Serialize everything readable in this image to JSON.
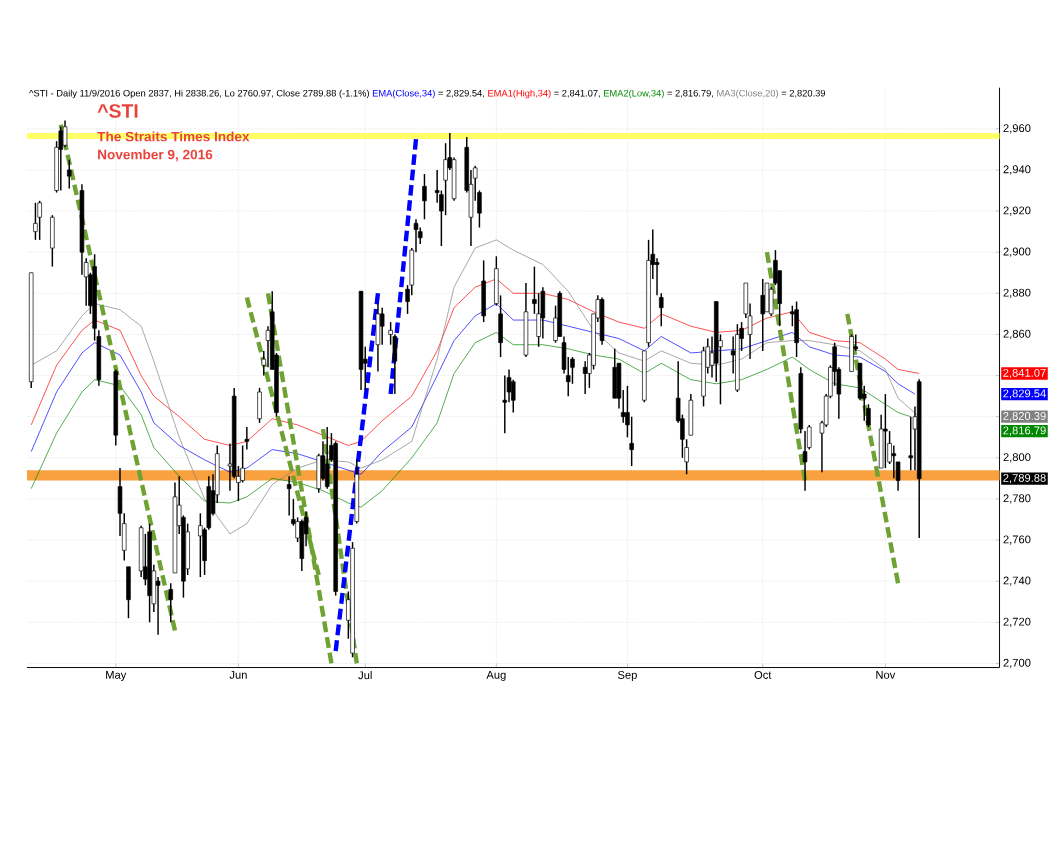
{
  "chart_data": {
    "type": "candlestick",
    "title": "^STI",
    "subtitle": "The Straits Times Index",
    "x": [
      "2016-04-13",
      "2016-04-14",
      "2016-04-15",
      "2016-04-18",
      "2016-04-19",
      "2016-04-20",
      "2016-04-21",
      "2016-04-22",
      "2016-04-25",
      "2016-04-26",
      "2016-04-27",
      "2016-04-28",
      "2016-04-29",
      "2016-05-03",
      "2016-05-04",
      "2016-05-05",
      "2016-05-06",
      "2016-05-09",
      "2016-05-10",
      "2016-05-11",
      "2016-05-12",
      "2016-05-13",
      "2016-05-16",
      "2016-05-17",
      "2016-05-18",
      "2016-05-19",
      "2016-05-20",
      "2016-05-23",
      "2016-05-24",
      "2016-05-25",
      "2016-05-26",
      "2016-05-27",
      "2016-05-30",
      "2016-05-31",
      "2016-06-01",
      "2016-06-02",
      "2016-06-03",
      "2016-06-06",
      "2016-06-07",
      "2016-06-08",
      "2016-06-09",
      "2016-06-10",
      "2016-06-13",
      "2016-06-14",
      "2016-06-15",
      "2016-06-16",
      "2016-06-17",
      "2016-06-20",
      "2016-06-21",
      "2016-06-22",
      "2016-06-23",
      "2016-06-24",
      "2016-06-27",
      "2016-06-28",
      "2016-06-29",
      "2016-06-30",
      "2016-07-01",
      "2016-07-04",
      "2016-07-05",
      "2016-07-07",
      "2016-07-08",
      "2016-07-11",
      "2016-07-12",
      "2016-07-13",
      "2016-07-14",
      "2016-07-15",
      "2016-07-18",
      "2016-07-19",
      "2016-07-20",
      "2016-07-21",
      "2016-07-22",
      "2016-07-25",
      "2016-07-26",
      "2016-07-27",
      "2016-07-28",
      "2016-07-29",
      "2016-08-01",
      "2016-08-02",
      "2016-08-03",
      "2016-08-04",
      "2016-08-05",
      "2016-08-08",
      "2016-08-10",
      "2016-08-11",
      "2016-08-12",
      "2016-08-15",
      "2016-08-16",
      "2016-08-17",
      "2016-08-18",
      "2016-08-19",
      "2016-08-22",
      "2016-08-23",
      "2016-08-24",
      "2016-08-25",
      "2016-08-26",
      "2016-08-29",
      "2016-08-30",
      "2016-08-31",
      "2016-09-01",
      "2016-09-02",
      "2016-09-05",
      "2016-09-06",
      "2016-09-07",
      "2016-09-08",
      "2016-09-09",
      "2016-09-13",
      "2016-09-14",
      "2016-09-15",
      "2016-09-16",
      "2016-09-19",
      "2016-09-20",
      "2016-09-21",
      "2016-09-22",
      "2016-09-23",
      "2016-09-26",
      "2016-09-27",
      "2016-09-28",
      "2016-09-29",
      "2016-09-30",
      "2016-10-03",
      "2016-10-04",
      "2016-10-05",
      "2016-10-06",
      "2016-10-07",
      "2016-10-10",
      "2016-10-11",
      "2016-10-12",
      "2016-10-13",
      "2016-10-14",
      "2016-10-17",
      "2016-10-18",
      "2016-10-19",
      "2016-10-20",
      "2016-10-21",
      "2016-10-24",
      "2016-10-25",
      "2016-10-26",
      "2016-10-27",
      "2016-10-28",
      "2016-10-31",
      "2016-11-01",
      "2016-11-02",
      "2016-11-03",
      "2016-11-04",
      "2016-11-07",
      "2016-11-08",
      "2016-11-09"
    ],
    "ohlc": [
      [
        2837,
        2890,
        2834,
        2890
      ],
      [
        2910,
        2924,
        2906,
        2914
      ],
      [
        2917,
        2925,
        2906,
        2924
      ],
      [
        2902,
        2918,
        2893,
        2917
      ],
      [
        2930,
        2954,
        2929,
        2951
      ],
      [
        2959,
        2961,
        2930,
        2950
      ],
      [
        2952,
        2964,
        2951,
        2961
      ],
      [
        2940,
        2945,
        2931,
        2937
      ],
      [
        2930,
        2933,
        2889,
        2900
      ],
      [
        2888,
        2897,
        2874,
        2895
      ],
      [
        2889,
        2890,
        2870,
        2874
      ],
      [
        2893,
        2899,
        2857,
        2863
      ],
      [
        2859,
        2862,
        2835,
        2838
      ],
      [
        2842,
        2843,
        2806,
        2811
      ],
      [
        2786,
        2795,
        2762,
        2773
      ],
      [
        2755,
        2773,
        2750,
        2768
      ],
      [
        2747,
        2747,
        2722,
        2731
      ],
      [
        2745,
        2767,
        2742,
        2766
      ],
      [
        2747,
        2763,
        2738,
        2741
      ],
      [
        2764,
        2768,
        2720,
        2733
      ],
      [
        2729,
        2748,
        2725,
        2745
      ],
      [
        2740,
        2742,
        2714,
        2738
      ],
      [
        2736,
        2739,
        2720,
        2731
      ],
      [
        2744,
        2788,
        2744,
        2781
      ],
      [
        2767,
        2791,
        2763,
        2777
      ],
      [
        2771,
        2772,
        2732,
        2740
      ],
      [
        2746,
        2768,
        2743,
        2764
      ],
      [
        2762,
        2773,
        2742,
        2767
      ],
      [
        2765,
        2766,
        2743,
        2750
      ],
      [
        2786,
        2791,
        2765,
        2766
      ],
      [
        2784,
        2792,
        2772,
        2773
      ],
      [
        2782,
        2806,
        2778,
        2802
      ],
      [
        2796,
        2807,
        2784,
        2797
      ],
      [
        2830,
        2834,
        2790,
        2791
      ],
      [
        2788,
        2796,
        2779,
        2791
      ],
      [
        2789,
        2806,
        2788,
        2795
      ],
      [
        2809,
        2815,
        2804,
        2808
      ],
      [
        2819,
        2834,
        2817,
        2832
      ],
      [
        2845,
        2852,
        2840,
        2848
      ],
      [
        2857,
        2864,
        2844,
        2862
      ],
      [
        2871,
        2881,
        2843,
        2843
      ],
      [
        2850,
        2851,
        2820,
        2822
      ],
      [
        2787,
        2791,
        2772,
        2785
      ],
      [
        2770,
        2780,
        2767,
        2768
      ],
      [
        2761,
        2771,
        2759,
        2769
      ],
      [
        2769,
        2770,
        2745,
        2751
      ],
      [
        2771,
        2774,
        2757,
        2763
      ],
      [
        2785,
        2802,
        2783,
        2801
      ],
      [
        2801,
        2808,
        2789,
        2790
      ],
      [
        2797,
        2815,
        2785,
        2786
      ],
      [
        2806,
        2812,
        2798,
        2799
      ],
      [
        2807,
        2808,
        2733,
        2735
      ],
      [
        2721,
        2735,
        2712,
        2731
      ],
      [
        2705,
        2759,
        2703,
        2756
      ],
      [
        2769,
        2799,
        2768,
        2792
      ],
      [
        2881,
        2881,
        2833,
        2843
      ],
      [
        2848,
        2854,
        2833,
        2846
      ],
      [
        2855,
        2875,
        2842,
        2870
      ],
      [
        2870,
        2873,
        2855,
        2864
      ],
      [
        2860,
        2866,
        2855,
        2862
      ],
      [
        2859,
        2860,
        2831,
        2847
      ],
      [
        2882,
        2884,
        2870,
        2876
      ],
      [
        2884,
        2902,
        2879,
        2901
      ],
      [
        2914,
        2916,
        2900,
        2911
      ],
      [
        2910,
        2912,
        2904,
        2907
      ],
      [
        2932,
        2938,
        2916,
        2925
      ],
      [
        2930,
        2940,
        2924,
        2929
      ],
      [
        2928,
        2930,
        2903,
        2920
      ],
      [
        2935,
        2953,
        2918,
        2945
      ],
      [
        2946,
        2958,
        2940,
        2941
      ],
      [
        2926,
        2946,
        2925,
        2945
      ],
      [
        2951,
        2956,
        2929,
        2930
      ],
      [
        2917,
        2940,
        2903,
        2933
      ],
      [
        2936,
        2942,
        2925,
        2941
      ],
      [
        2929,
        2930,
        2912,
        2919
      ],
      [
        2886,
        2896,
        2866,
        2869
      ],
      [
        2875,
        2898,
        2874,
        2892
      ],
      [
        2870,
        2879,
        2849,
        2856
      ],
      [
        2828,
        2840,
        2812,
        2827
      ],
      [
        2839,
        2843,
        2827,
        2832
      ],
      [
        2837,
        2838,
        2822,
        2828
      ],
      [
        2850,
        2885,
        2849,
        2871
      ],
      [
        2877,
        2893,
        2870,
        2875
      ],
      [
        2859,
        2880,
        2854,
        2870
      ],
      [
        2881,
        2883,
        2858,
        2868
      ],
      [
        2857,
        2874,
        2856,
        2868
      ],
      [
        2880,
        2881,
        2859,
        2859
      ],
      [
        2856,
        2859,
        2841,
        2843
      ],
      [
        2840,
        2849,
        2830,
        2837
      ],
      [
        2848,
        2849,
        2836,
        2844
      ],
      [
        2844,
        2847,
        2831,
        2841
      ],
      [
        2841,
        2851,
        2834,
        2850
      ],
      [
        2845,
        2870,
        2843,
        2870
      ],
      [
        2868,
        2879,
        2866,
        2877
      ],
      [
        2877,
        2878,
        2855,
        2857
      ],
      [
        2844,
        2853,
        2829,
        2829
      ],
      [
        2846,
        2846,
        2824,
        2829
      ],
      [
        2822,
        2833,
        2817,
        2820
      ],
      [
        2822,
        2835,
        2810,
        2816
      ],
      [
        2807,
        2820,
        2796,
        2804
      ],
      [
        2828,
        2852,
        2827,
        2852
      ],
      [
        2856,
        2906,
        2854,
        2896
      ],
      [
        2899,
        2911,
        2887,
        2894
      ],
      [
        2895,
        2897,
        2879,
        2894
      ],
      [
        2878,
        2880,
        2864,
        2873
      ],
      [
        2829,
        2847,
        2817,
        2818
      ],
      [
        2819,
        2821,
        2800,
        2809
      ],
      [
        2798,
        2809,
        2792,
        2805
      ],
      [
        2811,
        2831,
        2811,
        2828
      ],
      [
        2830,
        2854,
        2825,
        2852
      ],
      [
        2844,
        2858,
        2841,
        2854
      ],
      [
        2845,
        2859,
        2839,
        2851
      ],
      [
        2876,
        2876,
        2837,
        2846
      ],
      [
        2854,
        2860,
        2826,
        2857
      ],
      [
        2852,
        2859,
        2841,
        2850
      ],
      [
        2833,
        2865,
        2832,
        2860
      ],
      [
        2863,
        2866,
        2852,
        2858
      ],
      [
        2870,
        2885,
        2868,
        2885
      ],
      [
        2860,
        2875,
        2848,
        2869
      ],
      [
        2879,
        2887,
        2852,
        2870
      ],
      [
        2871,
        2885,
        2871,
        2885
      ],
      [
        2870,
        2883,
        2869,
        2882
      ],
      [
        2896,
        2901,
        2884,
        2885
      ],
      [
        2891,
        2891,
        2864,
        2875
      ],
      [
        2871,
        2874,
        2864,
        2870
      ],
      [
        2872,
        2876,
        2849,
        2856
      ],
      [
        2841,
        2844,
        2812,
        2814
      ],
      [
        2803,
        2813,
        2784,
        2798
      ],
      [
        2805,
        2816,
        2804,
        2815
      ],
      [
        2812,
        2818,
        2793,
        2817
      ],
      [
        2816,
        2831,
        2815,
        2830
      ],
      [
        2830,
        2845,
        2829,
        2844
      ],
      [
        2854,
        2856,
        2835,
        2842
      ],
      [
        2843,
        2844,
        2819,
        2831
      ],
      [
        2842,
        2860,
        2842,
        2859
      ],
      [
        2854,
        2860,
        2852,
        2853
      ],
      [
        2846,
        2846,
        2828,
        2829
      ],
      [
        2831,
        2835,
        2818,
        2829
      ],
      [
        2824,
        2826,
        2815,
        2816
      ],
      [
        2795,
        2821,
        2795,
        2814
      ],
      [
        2814,
        2831,
        2795,
        2813
      ],
      [
        2798,
        2813,
        2797,
        2807
      ],
      [
        2802,
        2806,
        2790,
        2801
      ],
      [
        2798,
        2798,
        2784,
        2789
      ],
      [
        2801,
        2820,
        2794,
        2800
      ],
      [
        2814,
        2825,
        2794,
        2820
      ],
      [
        2837,
        2838.26,
        2760.97,
        2789.88
      ]
    ],
    "series": [
      {
        "name": "EMA(Close,34)",
        "type": "line",
        "color": "#0000ff",
        "x": [
          "2016-04-13",
          "2016-04-19",
          "2016-04-25",
          "2016-04-28",
          "2016-05-04",
          "2016-05-09",
          "2016-05-12",
          "2016-05-18",
          "2016-05-24",
          "2016-05-30",
          "2016-06-03",
          "2016-06-09",
          "2016-06-15",
          "2016-06-27",
          "2016-06-30",
          "2016-07-05",
          "2016-07-12",
          "2016-07-18",
          "2016-07-22",
          "2016-07-27",
          "2016-08-01",
          "2016-08-05",
          "2016-08-12",
          "2016-08-18",
          "2016-08-24",
          "2016-08-30",
          "2016-09-05",
          "2016-09-09",
          "2016-09-16",
          "2016-09-28",
          "2016-10-04",
          "2016-10-10",
          "2016-10-14",
          "2016-10-20",
          "2016-10-26",
          "2016-11-01",
          "2016-11-04",
          "2016-11-08"
        ],
        "values": [
          2803,
          2832,
          2851,
          2856,
          2850,
          2832,
          2817,
          2806,
          2799,
          2793,
          2795,
          2804,
          2802,
          2794,
          2792,
          2803,
          2815,
          2840,
          2857,
          2869,
          2875,
          2867,
          2867,
          2864,
          2861,
          2858,
          2852,
          2859,
          2851,
          2853,
          2857,
          2861,
          2854,
          2850,
          2849,
          2842,
          2836,
          2831
        ]
      },
      {
        "name": "EMA1(High,34)",
        "type": "line",
        "color": "#ff0000",
        "x": [
          "2016-04-13",
          "2016-04-19",
          "2016-04-25",
          "2016-04-28",
          "2016-05-04",
          "2016-05-09",
          "2016-05-12",
          "2016-05-18",
          "2016-05-24",
          "2016-05-30",
          "2016-06-03",
          "2016-06-09",
          "2016-06-15",
          "2016-06-21",
          "2016-06-27",
          "2016-06-30",
          "2016-07-05",
          "2016-07-12",
          "2016-07-18",
          "2016-07-22",
          "2016-07-27",
          "2016-08-01",
          "2016-08-05",
          "2016-08-12",
          "2016-08-18",
          "2016-08-24",
          "2016-08-30",
          "2016-09-05",
          "2016-09-09",
          "2016-09-16",
          "2016-09-22",
          "2016-09-28",
          "2016-10-04",
          "2016-10-10",
          "2016-10-14",
          "2016-10-20",
          "2016-10-26",
          "2016-11-01",
          "2016-11-04",
          "2016-11-09"
        ],
        "values": [
          2816,
          2845,
          2862,
          2867,
          2862,
          2840,
          2830,
          2820,
          2809,
          2806,
          2808,
          2819,
          2816,
          2811,
          2806,
          2808,
          2818,
          2830,
          2852,
          2873,
          2883,
          2887,
          2880,
          2880,
          2877,
          2871,
          2866,
          2863,
          2870,
          2864,
          2861,
          2862,
          2868,
          2871,
          2861,
          2857,
          2856,
          2848,
          2843,
          2841
        ]
      },
      {
        "name": "EMA2(Low,34)",
        "type": "line",
        "color": "#008800",
        "x": [
          "2016-04-13",
          "2016-04-19",
          "2016-04-25",
          "2016-04-28",
          "2016-05-04",
          "2016-05-09",
          "2016-05-12",
          "2016-05-18",
          "2016-05-24",
          "2016-05-30",
          "2016-06-03",
          "2016-06-09",
          "2016-06-15",
          "2016-06-21",
          "2016-06-27",
          "2016-06-30",
          "2016-07-05",
          "2016-07-12",
          "2016-07-18",
          "2016-07-22",
          "2016-07-27",
          "2016-08-01",
          "2016-08-05",
          "2016-08-12",
          "2016-08-18",
          "2016-08-24",
          "2016-08-30",
          "2016-09-05",
          "2016-09-09",
          "2016-09-16",
          "2016-09-22",
          "2016-09-28",
          "2016-10-04",
          "2016-10-10",
          "2016-10-14",
          "2016-10-20",
          "2016-10-26",
          "2016-11-01",
          "2016-11-04",
          "2016-11-07"
        ],
        "values": [
          2785,
          2812,
          2832,
          2838,
          2835,
          2821,
          2805,
          2791,
          2779,
          2778,
          2781,
          2790,
          2788,
          2784,
          2778,
          2776,
          2784,
          2800,
          2817,
          2841,
          2856,
          2861,
          2855,
          2855,
          2853,
          2850,
          2848,
          2841,
          2846,
          2838,
          2836,
          2838,
          2843,
          2849,
          2843,
          2836,
          2834,
          2826,
          2822,
          2820
        ]
      },
      {
        "name": "MA3(Close,20)",
        "type": "line",
        "color": "#808080",
        "x": [
          "2016-04-13",
          "2016-04-19",
          "2016-04-25",
          "2016-04-28",
          "2016-05-04",
          "2016-05-09",
          "2016-05-12",
          "2016-05-18",
          "2016-05-24",
          "2016-05-30",
          "2016-06-03",
          "2016-06-09",
          "2016-06-15",
          "2016-06-21",
          "2016-06-27",
          "2016-06-30",
          "2016-07-05",
          "2016-07-12",
          "2016-07-18",
          "2016-07-22",
          "2016-07-27",
          "2016-08-01",
          "2016-08-05",
          "2016-08-12",
          "2016-08-18",
          "2016-08-24",
          "2016-08-30",
          "2016-09-05",
          "2016-09-09",
          "2016-09-16",
          "2016-09-22",
          "2016-09-28",
          "2016-10-04",
          "2016-10-10",
          "2016-10-14",
          "2016-10-20",
          "2016-10-26",
          "2016-11-01",
          "2016-11-04",
          "2016-11-09"
        ],
        "values": [
          2845,
          2852,
          2869,
          2875,
          2872,
          2864,
          2847,
          2810,
          2780,
          2763,
          2768,
          2787,
          2795,
          2799,
          2798,
          2795,
          2799,
          2808,
          2848,
          2883,
          2902,
          2906,
          2901,
          2894,
          2881,
          2862,
          2851,
          2847,
          2852,
          2846,
          2845,
          2848,
          2856,
          2857,
          2857,
          2855,
          2852,
          2843,
          2829,
          2820
        ]
      },
      {
        "type": "line",
        "line_style": "dashed",
        "color": "#6ea233",
        "x": [
          "2016-04-20",
          "2016-05-17"
        ],
        "values": [
          2962,
          2716
        ]
      },
      {
        "type": "line",
        "line_style": "dashed",
        "color": "#6ea233",
        "x": [
          "2016-06-03",
          "2016-06-20"
        ],
        "values": [
          2878,
          2743
        ]
      },
      {
        "type": "line",
        "line_style": "dashed",
        "color": "#6ea233",
        "x": [
          "2016-06-08",
          "2016-06-23"
        ],
        "values": [
          2880,
          2700
        ]
      },
      {
        "type": "line",
        "line_style": "dashed",
        "color": "#6ea233",
        "x": [
          "2016-06-21",
          "2016-06-29"
        ],
        "values": [
          2814,
          2700
        ]
      },
      {
        "type": "line",
        "line_style": "dashed",
        "color": "#0000ff",
        "x": [
          "2016-06-24",
          "2016-07-04"
        ],
        "values": [
          2706,
          2880
        ]
      },
      {
        "type": "line",
        "line_style": "dashed",
        "color": "#0000ff",
        "x": [
          "2016-07-07",
          "2016-07-13"
        ],
        "values": [
          2831,
          2955
        ]
      },
      {
        "type": "line",
        "line_style": "dashed",
        "color": "#6ea233",
        "x": [
          "2016-10-04",
          "2016-10-13"
        ],
        "values": [
          2900,
          2789
        ]
      },
      {
        "type": "line",
        "line_style": "dashed",
        "color": "#6ea233",
        "x": [
          "2016-10-23",
          "2016-11-04"
        ],
        "values": [
          2870,
          2739
        ]
      }
    ],
    "bands": [
      {
        "axis": "y",
        "from": 2955,
        "to": 2958,
        "color": "#ffff66"
      },
      {
        "axis": "y",
        "from": 2789,
        "to": 2794,
        "color": "#f9a03f"
      }
    ],
    "annotations": [
      "^STI - Daily 11/9/2016 Open 2837, Hi 2838.26, Lo 2760.97, Close 2789.88 (-1.1%)",
      "= 2,829.54,",
      "= 2,841.07,",
      "= 2,816.79,",
      "= 2,820.39",
      "November 9, 2016",
      "2,829.54",
      "2,841.07",
      "2,816.79",
      "2,820.39",
      "2,789.88"
    ],
    "xlim": [
      "2016-04-12",
      "2016-11-28"
    ],
    "xticks": [
      {
        "value": "2016-05-03",
        "label": "May"
      },
      {
        "value": "2016-06-01",
        "label": "Jun"
      },
      {
        "value": "2016-07-01",
        "label": "Jul"
      },
      {
        "value": "2016-08-01",
        "label": "Aug"
      },
      {
        "value": "2016-09-01",
        "label": "Sep"
      },
      {
        "value": "2016-10-03",
        "label": "Oct"
      },
      {
        "value": "2016-11-01",
        "label": "Nov"
      }
    ],
    "ylim": [
      2698,
      2980
    ],
    "yticks": [
      {
        "value": 2700,
        "label": "2,700"
      },
      {
        "value": 2720,
        "label": "2,720"
      },
      {
        "value": 2740,
        "label": "2,740"
      },
      {
        "value": 2760,
        "label": "2,760"
      },
      {
        "value": 2780,
        "label": "2,780"
      },
      {
        "value": 2800,
        "label": "2,800"
      },
      {
        "value": 2820,
        "label": null
      },
      {
        "value": 2840,
        "label": null
      },
      {
        "value": 2860,
        "label": "2,860"
      },
      {
        "value": 2880,
        "label": "2,880"
      },
      {
        "value": 2900,
        "label": "2,900"
      },
      {
        "value": 2920,
        "label": "2,920"
      },
      {
        "value": 2940,
        "label": "2,940"
      },
      {
        "value": 2960,
        "label": "2,960"
      }
    ],
    "grid": true,
    "legend": "top"
  }
}
